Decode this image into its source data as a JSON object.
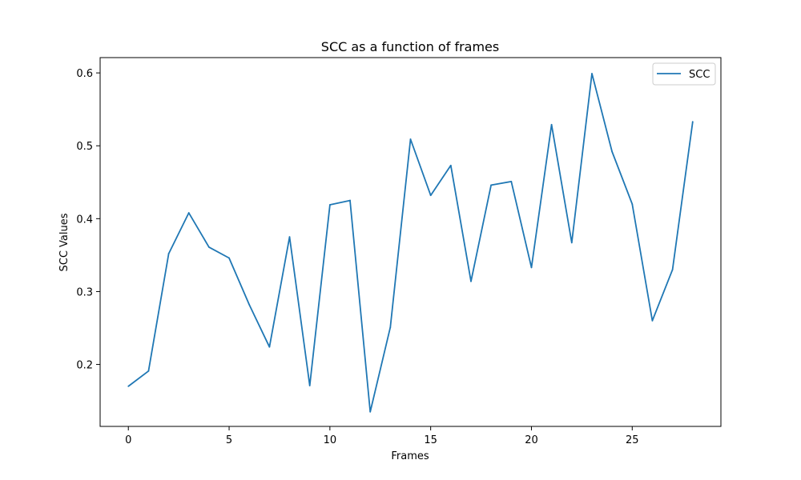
{
  "chart_data": {
    "type": "line",
    "title": "SCC as a function of frames",
    "xlabel": "Frames",
    "ylabel": "SCC Values",
    "xlim": [
      -1.4,
      29.4
    ],
    "ylim": [
      0.115,
      0.621
    ],
    "xticks": [
      0,
      5,
      10,
      15,
      20,
      25
    ],
    "yticks": [
      0.2,
      0.3,
      0.4,
      0.5,
      0.6
    ],
    "xtick_labels": [
      "0",
      "5",
      "10",
      "15",
      "20",
      "25"
    ],
    "ytick_labels": [
      "0.2",
      "0.3",
      "0.4",
      "0.5",
      "0.6"
    ],
    "grid": false,
    "legend_position": "top-right",
    "series": [
      {
        "name": "SCC",
        "color": "#1f77b4",
        "x": [
          0,
          1,
          2,
          3,
          4,
          5,
          6,
          7,
          8,
          9,
          10,
          11,
          12,
          13,
          14,
          15,
          16,
          17,
          18,
          19,
          20,
          21,
          22,
          23,
          24,
          25,
          26,
          27,
          28
        ],
        "values": [
          0.17,
          0.191,
          0.352,
          0.408,
          0.361,
          0.346,
          0.282,
          0.224,
          0.375,
          0.171,
          0.419,
          0.425,
          0.135,
          0.251,
          0.509,
          0.432,
          0.473,
          0.314,
          0.446,
          0.451,
          0.333,
          0.529,
          0.367,
          0.599,
          0.492,
          0.42,
          0.26,
          0.33,
          0.533
        ]
      }
    ]
  }
}
